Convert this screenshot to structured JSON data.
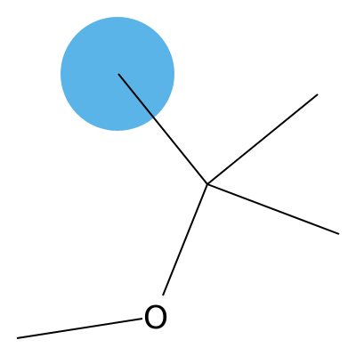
{
  "molecule": {
    "atoms": [
      {
        "id": "c1",
        "element": "C",
        "label": ""
      },
      {
        "id": "c2",
        "element": "C",
        "label": ""
      },
      {
        "id": "c3",
        "element": "C",
        "label": ""
      },
      {
        "id": "c4",
        "element": "C",
        "label": ""
      },
      {
        "id": "o1",
        "element": "O",
        "label": "O"
      },
      {
        "id": "c5",
        "element": "C",
        "label": ""
      }
    ],
    "bonds": [
      {
        "from": "c1",
        "to": "c2",
        "order": 1
      },
      {
        "from": "c2",
        "to": "c3",
        "order": 1
      },
      {
        "from": "c2",
        "to": "c4",
        "order": 1
      },
      {
        "from": "c2",
        "to": "o1",
        "order": 1
      },
      {
        "from": "o1",
        "to": "c5",
        "order": 1
      }
    ],
    "highlight": {
      "atom": "c1",
      "color": "#5ab4e8"
    }
  }
}
